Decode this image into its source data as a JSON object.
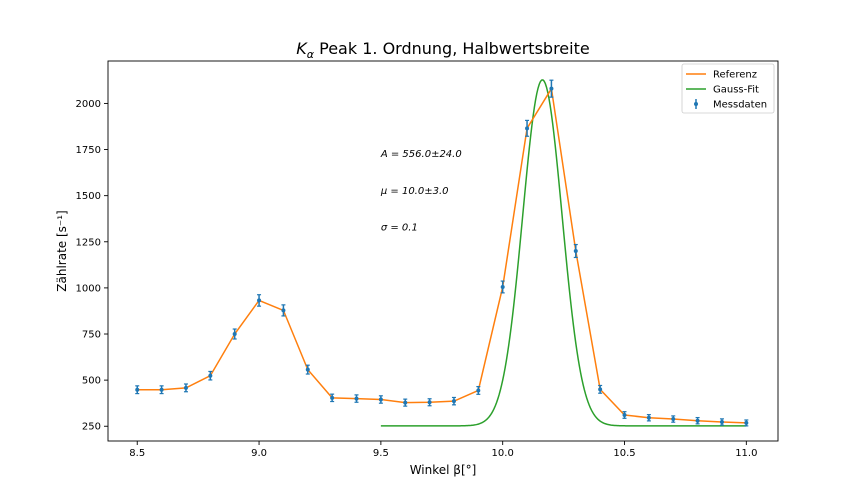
{
  "chart_data": {
    "type": "scatter",
    "title": "K",
    "title_subscript": "α",
    "title_rest": " Peak 1. Ordnung, Halbwertsbreite",
    "xlabel": "Winkel β[°]",
    "ylabel": "Zählrate [s⁻¹]",
    "xlim": [
      8.38,
      11.13
    ],
    "ylim": [
      170,
      2230
    ],
    "xticks": [
      8.5,
      9.0,
      9.5,
      10.0,
      10.5,
      11.0
    ],
    "xtick_labels": [
      "8.5",
      "9.0",
      "9.5",
      "10.0",
      "10.5",
      "11.0"
    ],
    "yticks": [
      250,
      500,
      750,
      1000,
      1250,
      1500,
      1750,
      2000
    ],
    "ytick_labels": [
      "250",
      "500",
      "750",
      "1000",
      "1250",
      "1500",
      "1750",
      "2000"
    ],
    "grid": false,
    "legend_placement": "top-right",
    "series": [
      {
        "name": "Referenz",
        "kind": "line",
        "color": "#ff7f0e",
        "x": [
          8.5,
          8.6,
          8.7,
          8.8,
          8.9,
          9.0,
          9.1,
          9.2,
          9.3,
          9.4,
          9.5,
          9.6,
          9.7,
          9.8,
          9.9,
          10.0,
          10.1,
          10.2,
          10.3,
          10.4,
          10.5,
          10.6,
          10.7,
          10.8,
          10.9,
          11.0
        ],
        "y": [
          448,
          448,
          458,
          524,
          750,
          932,
          878,
          557,
          404,
          400,
          395,
          378,
          380,
          386,
          444,
          1005,
          1865,
          2080,
          1200,
          450,
          311,
          296,
          289,
          280,
          273,
          268
        ]
      },
      {
        "name": "Gauss-Fit",
        "kind": "curve",
        "color": "#2ca02c",
        "baseline": 252,
        "amplitude": 1876,
        "center": 10.163,
        "sigma": 0.081,
        "x_range": [
          9.5,
          11.0
        ]
      },
      {
        "name": "Messdaten",
        "kind": "errorbar",
        "color": "#1f77b4",
        "x": [
          8.5,
          8.6,
          8.7,
          8.8,
          8.9,
          9.0,
          9.1,
          9.2,
          9.3,
          9.4,
          9.5,
          9.6,
          9.7,
          9.8,
          9.9,
          10.0,
          10.1,
          10.2,
          10.3,
          10.4,
          10.5,
          10.6,
          10.7,
          10.8,
          10.9,
          11.0
        ],
        "y": [
          448,
          448,
          458,
          524,
          750,
          932,
          878,
          557,
          404,
          400,
          395,
          378,
          380,
          386,
          444,
          1005,
          1865,
          2080,
          1200,
          450,
          311,
          296,
          289,
          280,
          273,
          268
        ],
        "yerr": [
          21,
          21,
          21,
          23,
          27,
          31,
          30,
          24,
          20,
          20,
          20,
          19,
          19,
          20,
          21,
          32,
          43,
          46,
          35,
          21,
          18,
          17,
          17,
          17,
          17,
          16
        ]
      }
    ],
    "annotations": [
      {
        "text": "A = 556.0±24.0",
        "x": 9.5,
        "y": 1710
      },
      {
        "text": "μ = 10.0±3.0",
        "x": 9.5,
        "y": 1510
      },
      {
        "text": "σ = 0.1",
        "x": 9.5,
        "y": 1310
      }
    ]
  }
}
